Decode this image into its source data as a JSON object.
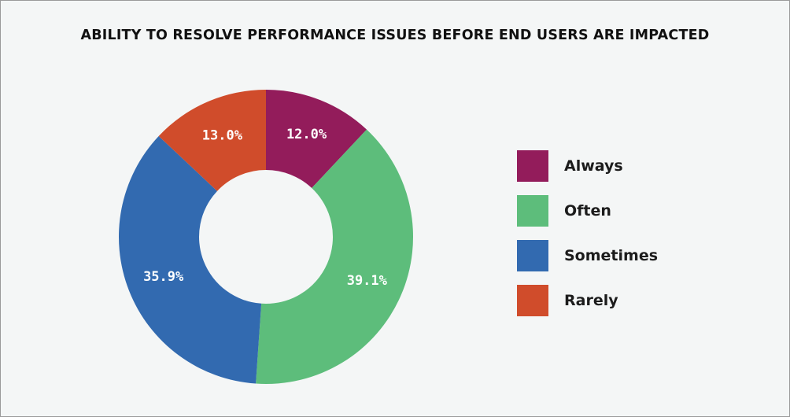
{
  "chart_data": {
    "type": "pie",
    "title": "ABILITY TO RESOLVE PERFORMANCE ISSUES BEFORE END USERS ARE IMPACTED",
    "donut": true,
    "legend_position": "right",
    "categories": [
      "Always",
      "Often",
      "Sometimes",
      "Rarely"
    ],
    "values": [
      12.0,
      39.1,
      35.9,
      13.0
    ],
    "value_labels": [
      "12.0%",
      "39.1%",
      "35.9%",
      "13.0%"
    ],
    "colors": [
      "#931c5b",
      "#5dbd7b",
      "#326ab0",
      "#d04c2b"
    ]
  }
}
